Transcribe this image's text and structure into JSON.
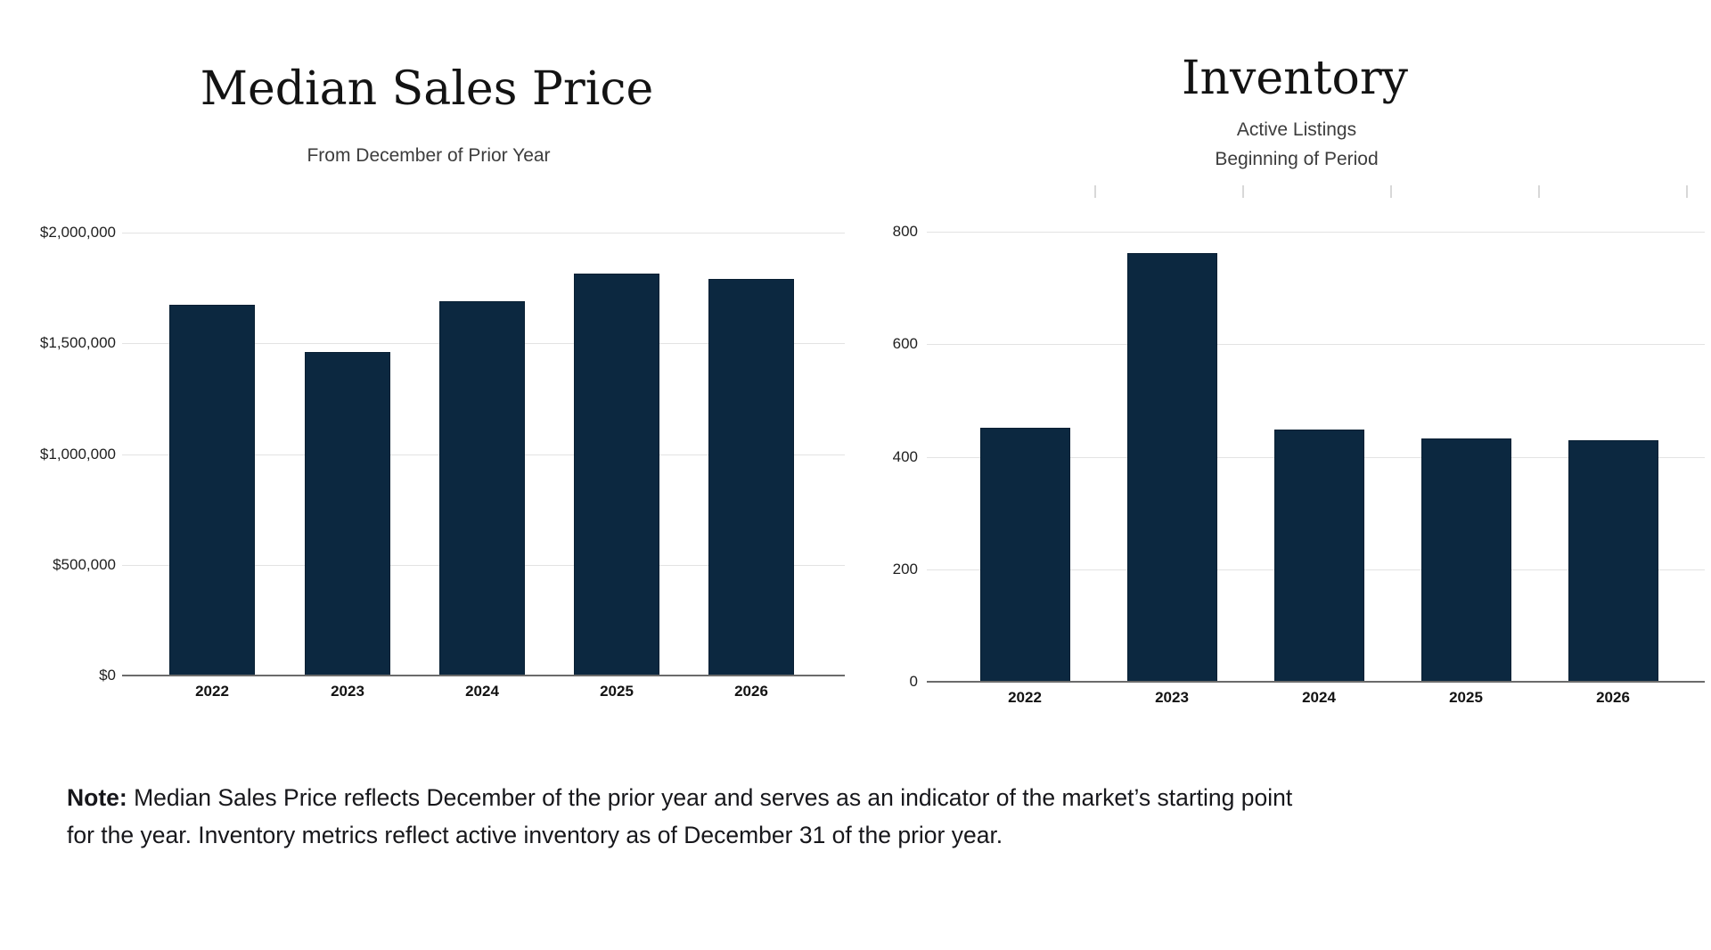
{
  "note": {
    "label": "Note:",
    "lines": [
      "Median Sales Price reflects December of the prior year and serves as an indicator of the market’s starting point",
      "for the year. Inventory metrics reflect active inventory as of December 31 of the prior year."
    ]
  },
  "colors": {
    "bar_fill": "#0c2840",
    "bar_border": "#081f33",
    "gridline": "#e3e3e3",
    "baseline": "#6b6b6b",
    "top_tick": "#d8d8d8",
    "title_text": "#131313",
    "subtitle_text": "#3d3d3d",
    "axis_label_text": "#1f1f1f"
  },
  "chart_data": [
    {
      "type": "bar",
      "title": "Median Sales Price",
      "subtitle_lines": [
        "From December of Prior Year"
      ],
      "categories": [
        "2022",
        "2023",
        "2024",
        "2025",
        "2026"
      ],
      "values": [
        1675000,
        1460000,
        1690000,
        1815000,
        1790000
      ],
      "xlabel": "",
      "ylabel": "",
      "ylim": [
        0,
        2000000
      ],
      "grid": true,
      "legend": null,
      "yticks": [
        {
          "value": 0,
          "label": "$0"
        },
        {
          "value": 500000,
          "label": "$500,000"
        },
        {
          "value": 1000000,
          "label": "$1,000,000"
        },
        {
          "value": 1500000,
          "label": "$1,500,000"
        },
        {
          "value": 2000000,
          "label": "$2,000,000"
        }
      ]
    },
    {
      "type": "bar",
      "title": "Inventory",
      "subtitle_lines": [
        "Active Listings",
        "Beginning of Period"
      ],
      "categories": [
        "2022",
        "2023",
        "2024",
        "2025",
        "2026"
      ],
      "values": [
        451,
        762,
        448,
        432,
        429
      ],
      "xlabel": "",
      "ylabel": "",
      "ylim": [
        0,
        800
      ],
      "grid": true,
      "legend": null,
      "yticks": [
        {
          "value": 0,
          "label": "0"
        },
        {
          "value": 200,
          "label": "200"
        },
        {
          "value": 400,
          "label": "400"
        },
        {
          "value": 600,
          "label": "600"
        },
        {
          "value": 800,
          "label": "800"
        }
      ]
    }
  ]
}
